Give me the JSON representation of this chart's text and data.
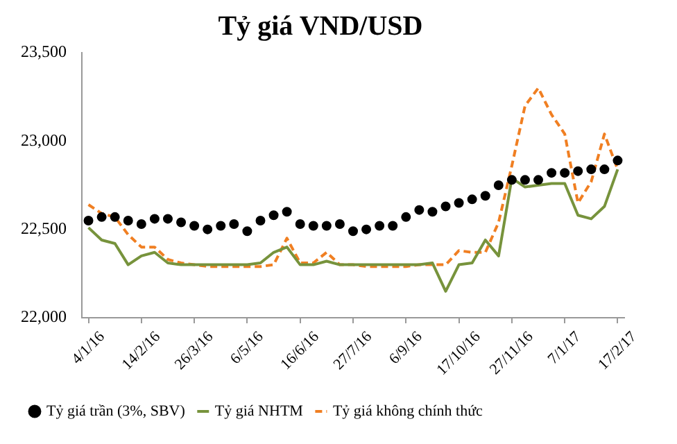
{
  "chart_data": {
    "type": "line",
    "title": "Tỷ giá VND/USD",
    "categories": [
      "4/1/16",
      null,
      null,
      null,
      "14/2/16",
      null,
      null,
      null,
      "26/3/16",
      null,
      null,
      null,
      "6/5/16",
      null,
      null,
      null,
      "16/6/16",
      null,
      null,
      null,
      "27/7/16",
      null,
      null,
      null,
      "6/9/16",
      null,
      null,
      null,
      "17/10/16",
      null,
      null,
      null,
      "27/11/16",
      null,
      null,
      null,
      "7/1/17",
      null,
      null,
      null,
      "17/2/17"
    ],
    "series": [
      {
        "name": "Tỷ giá trần (3%, SBV)",
        "type": "scatter",
        "marker": "circle",
        "color": "#000000",
        "values": [
          22550,
          22570,
          22570,
          22550,
          22530,
          22560,
          22560,
          22540,
          22520,
          22500,
          22520,
          22530,
          22490,
          22550,
          22580,
          22600,
          22530,
          22520,
          22520,
          22530,
          22490,
          22500,
          22520,
          22520,
          22570,
          22610,
          22600,
          22630,
          22650,
          22670,
          22690,
          22750,
          22780,
          22780,
          22780,
          22820,
          22820,
          22830,
          22840,
          22840,
          22890
        ]
      },
      {
        "name": "Tỷ giá NHTM",
        "line_style": "solid",
        "color": "#77933c",
        "values": [
          22510,
          22440,
          22420,
          22300,
          22350,
          22370,
          22310,
          22300,
          22300,
          22300,
          22300,
          22300,
          22300,
          22310,
          22370,
          22400,
          22300,
          22300,
          22320,
          22300,
          22300,
          22300,
          22300,
          22300,
          22300,
          22300,
          22310,
          22150,
          22300,
          22310,
          22440,
          22350,
          22790,
          22740,
          22750,
          22760,
          22760,
          22580,
          22560,
          22630,
          22840
        ]
      },
      {
        "name": "Tỷ giá không chính thức",
        "line_style": "dashed",
        "color": "#f07f22",
        "values": [
          22640,
          22590,
          22570,
          22470,
          22400,
          22400,
          22330,
          22310,
          22300,
          22290,
          22290,
          22290,
          22290,
          22290,
          22300,
          22450,
          22310,
          22310,
          22370,
          22300,
          22300,
          22290,
          22290,
          22290,
          22290,
          22300,
          22300,
          22300,
          22380,
          22370,
          22370,
          22540,
          22860,
          23200,
          23300,
          23150,
          23040,
          22650,
          22770,
          23040,
          22840
        ]
      }
    ],
    "ylim": [
      22000,
      23500
    ],
    "yticks": [
      {
        "value": 22000,
        "label": "22,000"
      },
      {
        "value": 22500,
        "label": "22,500"
      },
      {
        "value": 23000,
        "label": "23,000"
      },
      {
        "value": 23500,
        "label": "23,500"
      }
    ],
    "legend": "bottom"
  }
}
